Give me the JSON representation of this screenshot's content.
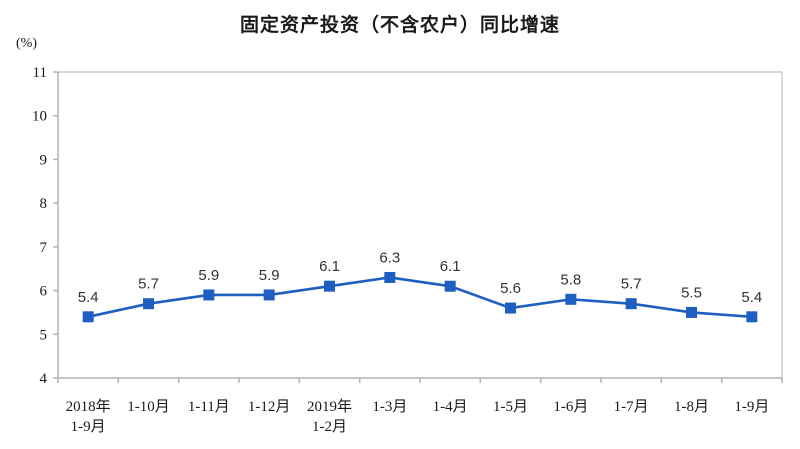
{
  "title": "固定资产投资（不含农户）同比增速",
  "unit_label": "(%)",
  "chart_data": {
    "type": "line",
    "title": "固定资产投资（不含农户）同比增速",
    "unit": "(%)",
    "categories": [
      "2018年\n1-9月",
      "1-10月",
      "1-11月",
      "1-12月",
      "2019年\n1-2月",
      "1-3月",
      "1-4月",
      "1-5月",
      "1-6月",
      "1-7月",
      "1-8月",
      "1-9月"
    ],
    "values": [
      5.4,
      5.7,
      5.9,
      5.9,
      6.1,
      6.3,
      6.1,
      5.6,
      5.8,
      5.7,
      5.5,
      5.4
    ],
    "ylabel": "",
    "xlabel": "",
    "ylim": [
      4,
      11
    ],
    "ytick_step": 1,
    "grid": false,
    "legend_position": "none",
    "line_color": "#1f5fc1",
    "marker": "square",
    "marker_size": 11,
    "data_label_color": "#333333",
    "axis_line_color": "#b3b3b3",
    "plot_border_color": "#cccccc"
  }
}
